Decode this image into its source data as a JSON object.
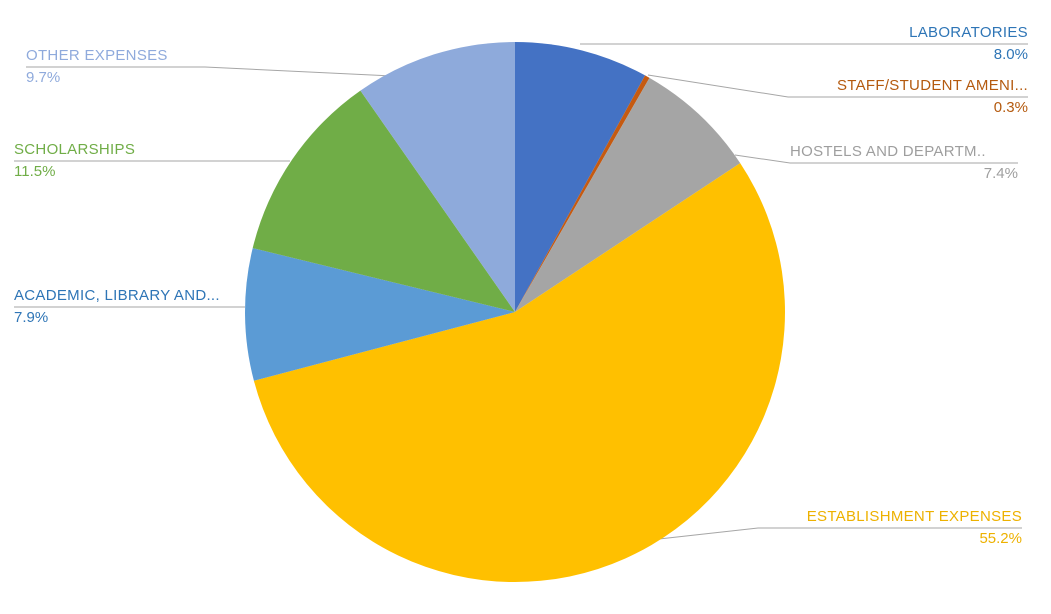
{
  "page": {
    "background": "#FFFFFF"
  },
  "chart_data": {
    "type": "pie",
    "title": "",
    "unit": "%",
    "start_angle_deg": 0,
    "direction": "clockwise",
    "legend_position": "none",
    "label_style": "outside-with-leader-lines",
    "leader_line_color": "#A6A6A6",
    "categories": [
      "LABORATORIES",
      "STAFF/STUDENT AMENI...",
      "HOSTELS AND DEPARTM..",
      "ESTABLISHMENT EXPENSES",
      "ACADEMIC, LIBRARY AND...",
      "SCHOLARSHIPS",
      "OTHER EXPENSES"
    ],
    "values": [
      8.0,
      0.3,
      7.4,
      55.2,
      7.9,
      11.5,
      9.7
    ],
    "points": [
      {
        "name": "LABORATORIES",
        "value_pct": 8.0,
        "display_pct": "8.0%",
        "slice_color": "#4472C4",
        "label_color": "#2E75B6"
      },
      {
        "name": "STAFF/STUDENT AMENI...",
        "value_pct": 0.3,
        "display_pct": "0.3%",
        "slice_color": "#C55A11",
        "label_color": "#B45A0F"
      },
      {
        "name": "HOSTELS AND DEPARTM..",
        "value_pct": 7.4,
        "display_pct": "7.4%",
        "slice_color": "#A5A5A5",
        "label_color": "#9E9E9E"
      },
      {
        "name": "ESTABLISHMENT EXPENSES",
        "value_pct": 55.2,
        "display_pct": "55.2%",
        "slice_color": "#FFC000",
        "label_color": "#EDB100"
      },
      {
        "name": "ACADEMIC, LIBRARY AND...",
        "value_pct": 7.9,
        "display_pct": "7.9%",
        "slice_color": "#5B9BD5",
        "label_color": "#2E75B6"
      },
      {
        "name": "SCHOLARSHIPS",
        "value_pct": 11.5,
        "display_pct": "11.5%",
        "slice_color": "#70AD47",
        "label_color": "#70AD47"
      },
      {
        "name": "OTHER EXPENSES",
        "value_pct": 9.7,
        "display_pct": "9.7%",
        "slice_color": "#8EAADB",
        "label_color": "#8FAADC"
      }
    ]
  }
}
